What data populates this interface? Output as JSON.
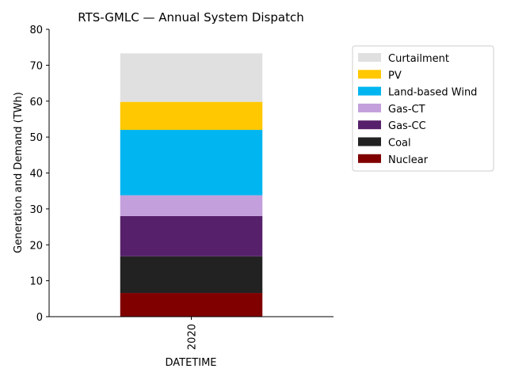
{
  "chart_data": {
    "type": "bar",
    "stacked": true,
    "title": "RTS-GMLC — Annual System Dispatch",
    "xlabel": "DATETIME",
    "ylabel": "Generation and Demand (TWh)",
    "categories": [
      "2020"
    ],
    "ylim": [
      0,
      80
    ],
    "yticks": [
      0,
      10,
      20,
      30,
      40,
      50,
      60,
      70,
      80
    ],
    "grid": false,
    "legend_position": "right, outside plot",
    "series": [
      {
        "name": "Nuclear",
        "values": [
          6.6
        ],
        "color": "#800000"
      },
      {
        "name": "Coal",
        "values": [
          10.2
        ],
        "color": "#222222"
      },
      {
        "name": "Gas-CC",
        "values": [
          11.2
        ],
        "color": "#56216a"
      },
      {
        "name": "Gas-CT",
        "values": [
          5.8
        ],
        "color": "#c39fdb"
      },
      {
        "name": "Land-based Wind",
        "values": [
          18.2
        ],
        "color": "#00b5f0"
      },
      {
        "name": "PV",
        "values": [
          7.8
        ],
        "color": "#ffc800"
      },
      {
        "name": "Curtailment",
        "values": [
          13.5
        ],
        "color": "#e0e0e0"
      }
    ]
  }
}
